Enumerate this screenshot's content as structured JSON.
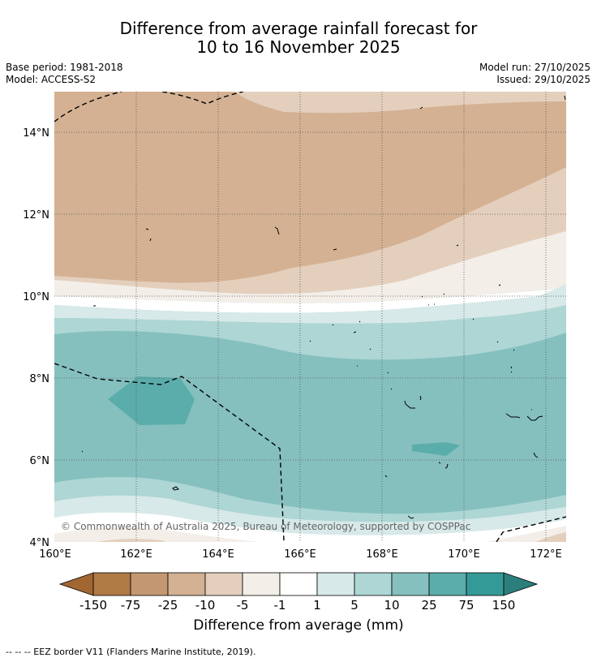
{
  "title": {
    "line1": "Difference from average rainfall forecast for",
    "line2": "10 to 16 November 2025"
  },
  "meta": {
    "base_period": "Base period: 1981-2018",
    "model": "Model: ACCESS-S2",
    "model_run": "Model run: 27/10/2025",
    "issued": "Issued: 29/10/2025"
  },
  "map": {
    "lat_labels": [
      "14°N",
      "12°N",
      "10°N",
      "8°N",
      "6°N",
      "4°N"
    ],
    "lon_labels": [
      "160°E",
      "162°E",
      "164°E",
      "166°E",
      "168°E",
      "170°E",
      "172°E"
    ],
    "copyright": "© Commonwealth of Australia 2025, Bureau of Meteorology, supported by COSPPac"
  },
  "colorbar": {
    "labels": [
      "-150",
      "-75",
      "-25",
      "-10",
      "-5",
      "-1",
      "1",
      "5",
      "10",
      "25",
      "75",
      "150"
    ],
    "colors": [
      "#a26632",
      "#b07a45",
      "#c39772",
      "#d3b192",
      "#e4cfbd",
      "#f3eee8",
      "#ffffff",
      "#d7e9e8",
      "#add6d5",
      "#85c0bf",
      "#5aadab",
      "#349a97",
      "#2a7f7c"
    ],
    "title": "Difference from average (mm)"
  },
  "footer": "-- -- -- EEZ border V11 (Flanders Marine Institute, 2019)."
}
